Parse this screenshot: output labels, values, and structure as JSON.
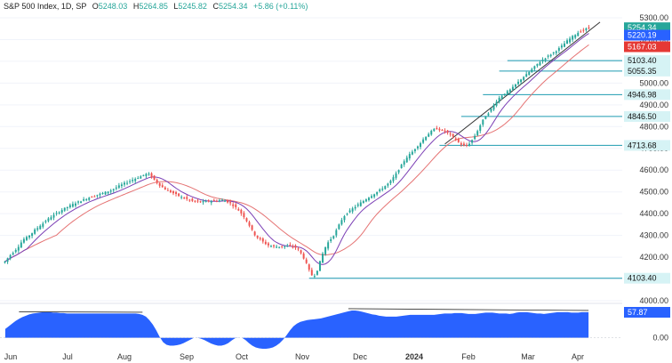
{
  "header": {
    "symbol": "S&P 500 Index, 1D, SP",
    "open_label": "O",
    "open": "5248.03",
    "high_label": "H",
    "high": "5264.85",
    "low_label": "L",
    "low": "5245.82",
    "close_label": "C",
    "close": "5254.34",
    "change": "+5.86 (+0.11%)"
  },
  "colors": {
    "up": "#26a69a",
    "down": "#ef5350",
    "ma_fast": "#7b3fb5",
    "ma_slow": "#e57373",
    "support": "#1e9bb0",
    "trend": "#333333",
    "oscillator": "#2962ff",
    "grid": "#f0f3fa"
  },
  "chart_data": [
    {
      "type": "candlestick",
      "title": "S&P 500 Index, 1D, SP",
      "ylim": [
        4000,
        5300
      ],
      "y_ticks": [
        4000,
        4100,
        4200,
        4300,
        4400,
        4500,
        4600,
        4700,
        4800,
        4900,
        5000,
        5100,
        5200,
        5300
      ],
      "x_tick_labels": [
        "Jun",
        "Jul",
        "Aug",
        "Sep",
        "Oct",
        "Nov",
        "Dec",
        "2024",
        "Feb",
        "Mar",
        "Apr"
      ],
      "closes": [
        4180,
        4195,
        4210,
        4222,
        4235,
        4250,
        4268,
        4283,
        4290,
        4300,
        4311,
        4325,
        4334,
        4346,
        4355,
        4367,
        4376,
        4385,
        4393,
        4401,
        4409,
        4417,
        4424,
        4430,
        4437,
        4443,
        4449,
        4454,
        4459,
        4464,
        4469,
        4474,
        4478,
        4482,
        4486,
        4490,
        4494,
        4498,
        4502,
        4507,
        4513,
        4520,
        4527,
        4533,
        4539,
        4544,
        4550,
        4556,
        4561,
        4566,
        4571,
        4577,
        4582,
        4581,
        4569,
        4556,
        4543,
        4531,
        4522,
        4513,
        4506,
        4500,
        4494,
        4488,
        4482,
        4476,
        4471,
        4467,
        4462,
        4458,
        4456,
        4455,
        4454,
        4455,
        4456,
        4457,
        4458,
        4459,
        4460,
        4461,
        4462,
        4460,
        4454,
        4447,
        4438,
        4428,
        4416,
        4402,
        4386,
        4367,
        4346,
        4323,
        4303,
        4290,
        4281,
        4271,
        4262,
        4255,
        4251,
        4249,
        4248,
        4248,
        4248,
        4250,
        4251,
        4251,
        4249,
        4244,
        4234,
        4218,
        4196,
        4170,
        4140,
        4118,
        4117,
        4140,
        4179,
        4216,
        4246,
        4268,
        4284,
        4300,
        4323,
        4348,
        4372,
        4390,
        4402,
        4412,
        4423,
        4432,
        4441,
        4450,
        4458,
        4467,
        4475,
        4483,
        4491,
        4499,
        4508,
        4517,
        4527,
        4537,
        4549,
        4566,
        4583,
        4603,
        4622,
        4642,
        4659,
        4672,
        4684,
        4698,
        4712,
        4725,
        4741,
        4755,
        4767,
        4778,
        4787,
        4791,
        4786,
        4782,
        4778,
        4771,
        4763,
        4752,
        4740,
        4728,
        4718,
        4711,
        4712,
        4723,
        4738,
        4758,
        4781,
        4806,
        4829,
        4848,
        4863,
        4881,
        4899,
        4917,
        4932,
        4943,
        4952,
        4960,
        4969,
        4980,
        4993,
        5005,
        5018,
        5029,
        5039,
        5051,
        5063,
        5075,
        5087,
        5097,
        5107,
        5116,
        5124,
        5132,
        5140,
        5149,
        5159,
        5170,
        5182,
        5194,
        5204,
        5214,
        5223,
        5232,
        5238,
        5243,
        5249,
        5254
      ],
      "last_close": 5254.34,
      "series": [
        {
          "name": "5220.19",
          "role": "moving-average-fast",
          "last": 5220.19
        },
        {
          "name": "5167.03",
          "role": "moving-average-slow",
          "last": 5167.03
        }
      ],
      "annotations": [
        {
          "kind": "support-level",
          "value": 5103.4,
          "label": "5103.40"
        },
        {
          "kind": "support-level",
          "value": 5055.35,
          "label": "5055.35"
        },
        {
          "kind": "support-level",
          "value": 4946.98,
          "label": "4946.98"
        },
        {
          "kind": "support-level",
          "value": 4846.5,
          "label": "4846.50"
        },
        {
          "kind": "support-level",
          "value": 4713.68,
          "label": "4713.68"
        },
        {
          "kind": "support-level",
          "value": 4103.4,
          "label": "4103.40"
        },
        {
          "kind": "trendline",
          "from_value": 4720,
          "to_value": 5280
        }
      ],
      "grid": true
    },
    {
      "type": "area",
      "title": "oscillator",
      "ylim": [
        -25,
        70
      ],
      "y_ticks": [
        0
      ],
      "y_tick_labels": [
        "0.00"
      ],
      "last_value": 57.87,
      "last_label": "57.87",
      "values": [
        20,
        26,
        32,
        38,
        43,
        47,
        50,
        53,
        55,
        56,
        57,
        58,
        58,
        58,
        57,
        57,
        56,
        56,
        55,
        55,
        55,
        55,
        55,
        55,
        55,
        55,
        55,
        55,
        55,
        55,
        55,
        55,
        55,
        55,
        55,
        55,
        55,
        55,
        55,
        54,
        52,
        48,
        40,
        30,
        17,
        2,
        -10,
        -16,
        -18,
        -18,
        -17,
        -15,
        -12,
        -8,
        -4,
        0,
        0,
        -2,
        -5,
        -9,
        -13,
        -16,
        -18,
        -18,
        -16,
        -12,
        -6,
        -1,
        0,
        0,
        -5,
        -12,
        -18,
        -22,
        -24,
        -25,
        -25,
        -24,
        -22,
        -18,
        -12,
        -4,
        6,
        17,
        26,
        32,
        36,
        38,
        40,
        41,
        42,
        43,
        44,
        46,
        48,
        50,
        52,
        54,
        56,
        58,
        60,
        62,
        62,
        61,
        59,
        57,
        55,
        53,
        52,
        50,
        49,
        48,
        48,
        48,
        48,
        49,
        50,
        51,
        52,
        52,
        52,
        52,
        52,
        52,
        52,
        52,
        53,
        54,
        55,
        55,
        55,
        56,
        56,
        56,
        55,
        54,
        54,
        54,
        55,
        56,
        57,
        57,
        57,
        56,
        55,
        55,
        55,
        54,
        55,
        57,
        58,
        58,
        58,
        57,
        56,
        55,
        55,
        54,
        55,
        56,
        57,
        58,
        58,
        58,
        58,
        57,
        57,
        57,
        58,
        58,
        58
      ],
      "divergence_lines": [
        {
          "from": 55,
          "to": 54
        },
        {
          "from": 62,
          "to": 58
        }
      ]
    }
  ]
}
